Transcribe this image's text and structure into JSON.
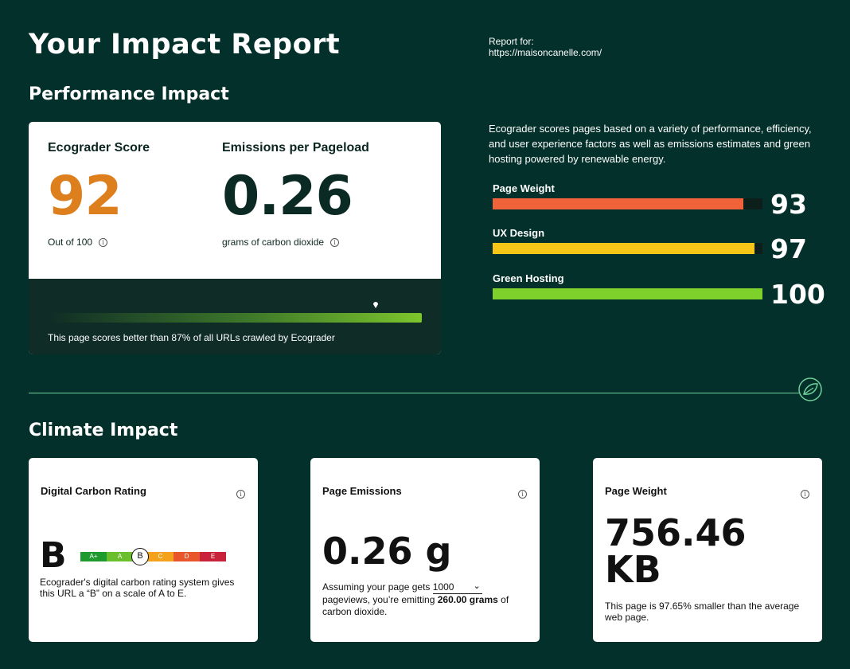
{
  "header": {
    "title": "Your Impact Report",
    "report_for_label": "Report for:",
    "report_url": "https://maisoncanelle.com/"
  },
  "performance": {
    "heading": "Performance Impact",
    "score_label": "Ecograder Score",
    "score_value": "92",
    "score_sub": "Out of 100",
    "emissions_label": "Emissions per Pageload",
    "emissions_value": "0.26",
    "emissions_sub": "grams of carbon dioxide",
    "percentile_text": "This page scores better than 87% of all URLs crawled by Ecograder",
    "percentile_fraction": 0.87,
    "description": "Ecograder scores pages based on a variety of performance, efficiency, and user experience factors as well as emissions estimates and green hosting powered by renewable energy.",
    "metrics": [
      {
        "label": "Page Weight",
        "value": "93",
        "fraction": 0.93,
        "color": "#f0623a"
      },
      {
        "label": "UX Design",
        "value": "97",
        "fraction": 0.97,
        "color": "#f5c518"
      },
      {
        "label": "Green Hosting",
        "value": "100",
        "fraction": 1.0,
        "color": "#7ed02a"
      }
    ]
  },
  "climate": {
    "heading": "Climate Impact",
    "rating_card": {
      "title": "Digital Carbon Rating",
      "letter": "B",
      "scale": [
        {
          "label": "A+",
          "color": "#1e9a2e"
        },
        {
          "label": "A",
          "color": "#6cbf2c"
        },
        {
          "label": "B",
          "color": "#ffffff"
        },
        {
          "label": "C",
          "color": "#f4a21c"
        },
        {
          "label": "D",
          "color": "#e9562c"
        },
        {
          "label": "E",
          "color": "#c8233a"
        }
      ],
      "active": "B",
      "description": "Ecograder's digital carbon rating system gives this URL a “B” on a scale of A to E."
    },
    "emissions_card": {
      "title": "Page Emissions",
      "value": "0.26 g",
      "desc_prefix": "Assuming your page gets",
      "pageviews": "1000",
      "desc_middle": "pageviews, you’re emitting",
      "grams": "260.00 grams",
      "desc_suffix": "of carbon dioxide."
    },
    "weight_card": {
      "title": "Page Weight",
      "value_line1": "756.46",
      "value_line2": "KB",
      "description": "This page is 97.65% smaller than the average web page."
    }
  }
}
